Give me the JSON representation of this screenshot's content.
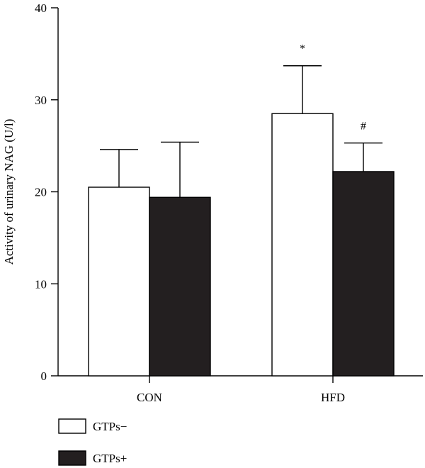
{
  "chart_data": {
    "type": "bar",
    "title": "",
    "xlabel": "",
    "ylabel": "Activity of urinary NAG (U/l)",
    "ylim": [
      0,
      40
    ],
    "yticks": [
      0,
      10,
      20,
      30,
      40
    ],
    "categories": [
      "CON",
      "HFD"
    ],
    "series": [
      {
        "name": "GTPs−",
        "values": [
          20.5,
          28.5
        ],
        "errors": [
          4.1,
          5.2
        ],
        "annotations": [
          "",
          "*"
        ],
        "fill": "#ffffff"
      },
      {
        "name": "GTPs+",
        "values": [
          19.4,
          22.2
        ],
        "errors": [
          6.0,
          3.1
        ],
        "annotations": [
          "",
          "#"
        ],
        "fill": "#231f20"
      }
    ],
    "legend_position": "bottom-left",
    "grid": false
  }
}
